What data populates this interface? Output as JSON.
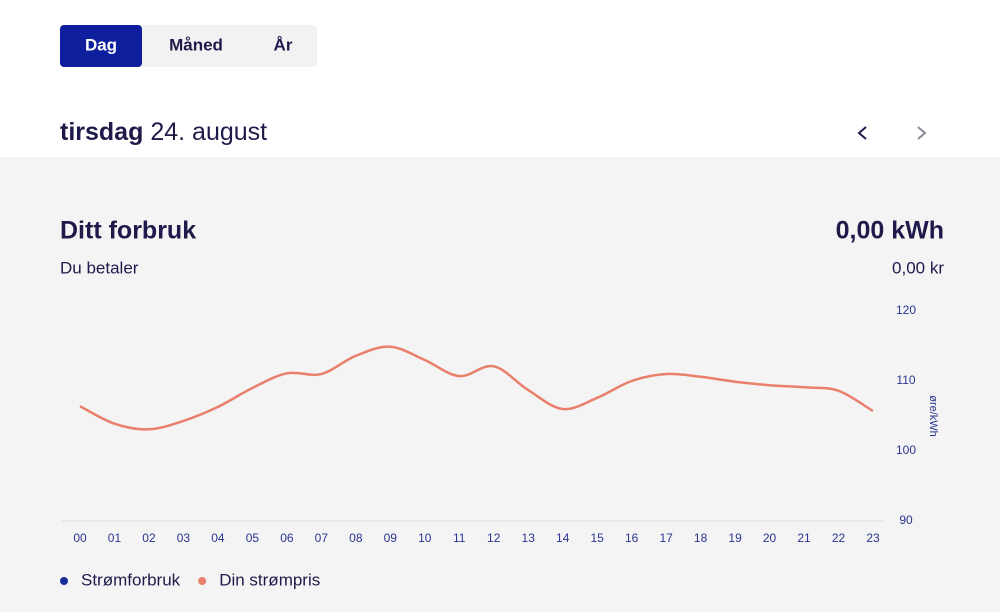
{
  "tabs": [
    "Dag",
    "Måned",
    "År"
  ],
  "date": {
    "weekday": "tirsdag",
    "day": "24. august"
  },
  "summary": {
    "title": "Ditt forbruk",
    "value": "0,00 kWh",
    "subtitle": "Du betaler",
    "cost": "0,00 kr"
  },
  "chart_data": {
    "type": "line",
    "categories": [
      "00",
      "01",
      "02",
      "03",
      "04",
      "05",
      "06",
      "07",
      "08",
      "09",
      "10",
      "11",
      "12",
      "13",
      "14",
      "15",
      "16",
      "17",
      "18",
      "19",
      "20",
      "21",
      "22",
      "23"
    ],
    "series": [
      {
        "name": "Strømforbruk",
        "color": "#1b2a9a"
      },
      {
        "name": "Din strømpris",
        "color": "#e8806c",
        "axis": "y2",
        "values": [
          106.4,
          103.9,
          103.1,
          104.3,
          106.3,
          109.0,
          111.1,
          111.0,
          113.6,
          114.9,
          113.0,
          110.7,
          112.1,
          108.7,
          106.0,
          107.6,
          110.0,
          111.0,
          110.6,
          109.9,
          109.4,
          109.1,
          108.6,
          105.7
        ]
      }
    ],
    "y2label": "øre/kWh",
    "y2lim": [
      90,
      120
    ],
    "y2ticks": [
      90,
      100,
      110,
      120
    ]
  }
}
